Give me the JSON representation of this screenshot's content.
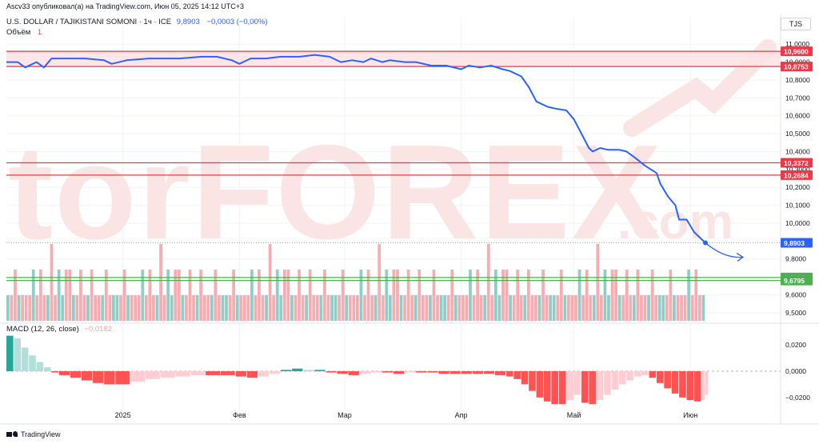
{
  "header": {
    "publisher_line": "Ascv33 опубликовал(а) на TradingView.com, Июн 05, 2025 14:12 UTC+3"
  },
  "symbol": {
    "name": "U.S. DOLLAR / TAJIKISTANI SOMONI · 1ч · ICE",
    "last_value": "9,8903",
    "change": "−0,0003 (−0,00%)"
  },
  "volume_label": {
    "name": "Объём",
    "value": "1"
  },
  "macd_label": {
    "name": "MACD (12, 26, close)",
    "value": "−0,0182"
  },
  "currency": "TJS",
  "footer": {
    "brand": "TradingView"
  },
  "watermark": {
    "text": "torFOREX",
    "suffix": ".com"
  },
  "colors": {
    "line": "#2962ff",
    "resistance": "#f23645",
    "support": "#4caf50",
    "zone_fill": "#ffe2e5",
    "volume_up": "#83c8c1",
    "volume_down": "#f5a3a7",
    "macd_pos_strong": "#26a69a",
    "macd_pos_weak": "#b2dfdb",
    "macd_neg_strong": "#ff5252",
    "macd_neg_weak": "#ffcdd2",
    "grid": "#f0f3fa"
  },
  "chart_data": {
    "type": "line",
    "title": "U.S. DOLLAR / TAJIKISTANI SOMONI · 1ч · ICE",
    "x_ticks": [
      "2025",
      "Фев",
      "Мар",
      "Апр",
      "Май",
      "Июн"
    ],
    "x_tick_dates": [
      "2025-01-01",
      "2025-02-01",
      "2025-03-01",
      "2025-04-01",
      "2025-05-01",
      "2025-06-01"
    ],
    "x_range": [
      "2024-12-01",
      "2025-06-25"
    ],
    "y_range": [
      9.45,
      11.05
    ],
    "y_ticks": [
      "11,0000",
      "10,9000",
      "10,8000",
      "10,7000",
      "10,6000",
      "10,5000",
      "10,4000",
      "10,3000",
      "10,2000",
      "10,1000",
      "10,0000",
      "9,8000",
      "9,6000",
      "9,5000"
    ],
    "grid": true,
    "series": [
      {
        "name": "U.S. DOLLAR / TAJIKISTANI SOMONI",
        "points": [
          [
            "2024-12-01",
            10.9
          ],
          [
            "2024-12-04",
            10.9
          ],
          [
            "2024-12-06",
            10.87
          ],
          [
            "2024-12-09",
            10.9
          ],
          [
            "2024-12-11",
            10.87
          ],
          [
            "2024-12-13",
            10.92
          ],
          [
            "2024-12-18",
            10.92
          ],
          [
            "2024-12-22",
            10.92
          ],
          [
            "2024-12-27",
            10.91
          ],
          [
            "2024-12-29",
            10.89
          ],
          [
            "2025-01-02",
            10.91
          ],
          [
            "2025-01-08",
            10.92
          ],
          [
            "2025-01-16",
            10.92
          ],
          [
            "2025-01-22",
            10.93
          ],
          [
            "2025-01-26",
            10.93
          ],
          [
            "2025-01-30",
            10.91
          ],
          [
            "2025-02-01",
            10.89
          ],
          [
            "2025-02-04",
            10.92
          ],
          [
            "2025-02-08",
            10.92
          ],
          [
            "2025-02-12",
            10.93
          ],
          [
            "2025-02-17",
            10.93
          ],
          [
            "2025-02-21",
            10.94
          ],
          [
            "2025-02-25",
            10.93
          ],
          [
            "2025-02-28",
            10.9
          ],
          [
            "2025-03-03",
            10.91
          ],
          [
            "2025-03-06",
            10.9
          ],
          [
            "2025-03-08",
            10.92
          ],
          [
            "2025-03-11",
            10.9
          ],
          [
            "2025-03-13",
            10.91
          ],
          [
            "2025-03-17",
            10.9
          ],
          [
            "2025-03-20",
            10.9
          ],
          [
            "2025-03-24",
            10.88
          ],
          [
            "2025-03-28",
            10.88
          ],
          [
            "2025-04-01",
            10.86
          ],
          [
            "2025-04-03",
            10.88
          ],
          [
            "2025-04-06",
            10.87
          ],
          [
            "2025-04-09",
            10.88
          ],
          [
            "2025-04-12",
            10.86
          ],
          [
            "2025-04-14",
            10.85
          ],
          [
            "2025-04-17",
            10.82
          ],
          [
            "2025-04-19",
            10.76
          ],
          [
            "2025-04-21",
            10.68
          ],
          [
            "2025-04-24",
            10.65
          ],
          [
            "2025-04-26",
            10.64
          ],
          [
            "2025-04-29",
            10.63
          ],
          [
            "2025-05-01",
            10.58
          ],
          [
            "2025-05-03",
            10.5
          ],
          [
            "2025-05-05",
            10.42
          ],
          [
            "2025-05-06",
            10.4
          ],
          [
            "2025-05-08",
            10.42
          ],
          [
            "2025-05-10",
            10.41
          ],
          [
            "2025-05-13",
            10.41
          ],
          [
            "2025-05-15",
            10.4
          ],
          [
            "2025-05-17",
            10.37
          ],
          [
            "2025-05-20",
            10.32
          ],
          [
            "2025-05-23",
            10.28
          ],
          [
            "2025-05-24",
            10.22
          ],
          [
            "2025-05-26",
            10.15
          ],
          [
            "2025-05-28",
            10.1
          ],
          [
            "2025-05-29",
            10.02
          ],
          [
            "2025-05-31",
            10.02
          ],
          [
            "2025-06-02",
            9.95
          ],
          [
            "2025-06-04",
            9.91
          ],
          [
            "2025-06-05",
            9.89
          ]
        ]
      }
    ],
    "projection": {
      "from": [
        "2025-06-05",
        9.89
      ],
      "to": [
        "2025-06-15",
        9.81
      ]
    },
    "horizontal_levels": [
      {
        "value": 10.96,
        "label": "10,9600",
        "kind": "resistance"
      },
      {
        "value": 10.8753,
        "label": "10,8753",
        "kind": "resistance"
      },
      {
        "value": 10.3372,
        "label": "10,3372",
        "kind": "resistance"
      },
      {
        "value": 10.2684,
        "label": "10,2684",
        "kind": "resistance"
      },
      {
        "value": 9.6964,
        "label": "9,6964",
        "kind": "support"
      },
      {
        "value": 9.6795,
        "label": "9,6795",
        "kind": "support"
      }
    ],
    "resistance_zone": [
      10.8753,
      10.96
    ],
    "last_price": {
      "value": 9.8903,
      "label": "9,8903"
    },
    "volume": {
      "name": "Объём",
      "pattern": [
        1,
        1,
        2,
        1,
        1,
        1,
        1,
        2,
        1,
        2,
        1,
        1,
        3,
        1,
        2,
        1,
        2,
        2,
        1,
        1,
        2,
        1,
        1,
        2,
        1,
        1,
        1,
        2,
        1,
        1
      ],
      "max_value": 4
    },
    "macd": {
      "name": "MACD (12, 26, close)",
      "y_ticks": [
        "0,0200",
        "0,0000",
        "−0,0200"
      ],
      "y_range": [
        -0.028,
        0.028
      ],
      "histogram": [
        [
          "2024-12-01",
          0.027
        ],
        [
          "2024-12-03",
          0.025
        ],
        [
          "2024-12-05",
          0.018
        ],
        [
          "2024-12-07",
          0.012
        ],
        [
          "2024-12-09",
          0.007
        ],
        [
          "2024-12-11",
          0.003
        ],
        [
          "2024-12-13",
          -0.001
        ],
        [
          "2024-12-15",
          -0.003
        ],
        [
          "2024-12-18",
          -0.005
        ],
        [
          "2024-12-21",
          -0.007
        ],
        [
          "2024-12-24",
          -0.009
        ],
        [
          "2024-12-27",
          -0.01
        ],
        [
          "2024-12-30",
          -0.01
        ],
        [
          "2025-01-03",
          -0.008
        ],
        [
          "2025-01-07",
          -0.006
        ],
        [
          "2025-01-11",
          -0.005
        ],
        [
          "2025-01-15",
          -0.004
        ],
        [
          "2025-01-19",
          -0.003
        ],
        [
          "2025-01-23",
          -0.003
        ],
        [
          "2025-01-27",
          -0.003
        ],
        [
          "2025-01-31",
          -0.004
        ],
        [
          "2025-02-03",
          -0.005
        ],
        [
          "2025-02-06",
          -0.004
        ],
        [
          "2025-02-09",
          -0.002
        ],
        [
          "2025-02-12",
          0.001
        ],
        [
          "2025-02-15",
          0.002
        ],
        [
          "2025-02-18",
          0.001
        ],
        [
          "2025-02-21",
          0.001
        ],
        [
          "2025-02-24",
          -0.001
        ],
        [
          "2025-02-27",
          -0.002
        ],
        [
          "2025-03-02",
          -0.003
        ],
        [
          "2025-03-05",
          -0.002
        ],
        [
          "2025-03-08",
          -0.001
        ],
        [
          "2025-03-11",
          -0.001
        ],
        [
          "2025-03-14",
          -0.002
        ],
        [
          "2025-03-17",
          -0.001
        ],
        [
          "2025-03-20",
          -0.001
        ],
        [
          "2025-03-23",
          -0.001
        ],
        [
          "2025-03-26",
          -0.002
        ],
        [
          "2025-03-29",
          -0.002
        ],
        [
          "2025-04-01",
          -0.002
        ],
        [
          "2025-04-04",
          -0.002
        ],
        [
          "2025-04-07",
          -0.002
        ],
        [
          "2025-04-10",
          -0.003
        ],
        [
          "2025-04-13",
          -0.004
        ],
        [
          "2025-04-15",
          -0.006
        ],
        [
          "2025-04-17",
          -0.01
        ],
        [
          "2025-04-19",
          -0.015
        ],
        [
          "2025-04-21",
          -0.02
        ],
        [
          "2025-04-23",
          -0.023
        ],
        [
          "2025-04-25",
          -0.025
        ],
        [
          "2025-04-27",
          -0.025
        ],
        [
          "2025-04-29",
          -0.022
        ],
        [
          "2025-05-01",
          -0.018
        ],
        [
          "2025-05-03",
          -0.024
        ],
        [
          "2025-05-05",
          -0.025
        ],
        [
          "2025-05-07",
          -0.022
        ],
        [
          "2025-05-09",
          -0.018
        ],
        [
          "2025-05-11",
          -0.014
        ],
        [
          "2025-05-13",
          -0.01
        ],
        [
          "2025-05-15",
          -0.007
        ],
        [
          "2025-05-17",
          -0.004
        ],
        [
          "2025-05-19",
          -0.003
        ],
        [
          "2025-05-21",
          -0.005
        ],
        [
          "2025-05-23",
          -0.009
        ],
        [
          "2025-05-25",
          -0.013
        ],
        [
          "2025-05-27",
          -0.017
        ],
        [
          "2025-05-29",
          -0.02
        ],
        [
          "2025-05-31",
          -0.022
        ],
        [
          "2025-06-02",
          -0.023
        ],
        [
          "2025-06-04",
          -0.022
        ],
        [
          "2025-06-05",
          -0.018
        ]
      ]
    }
  }
}
